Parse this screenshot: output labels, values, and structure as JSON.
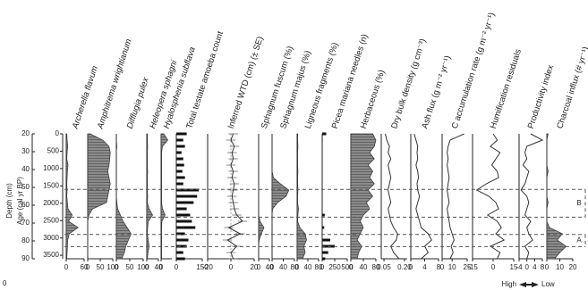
{
  "chart_data": {
    "type": "stratigraphic",
    "corner_label": "0",
    "depth_axis": {
      "label": "Depth (cm)",
      "lim": [
        20,
        90
      ],
      "ticks": [
        20,
        30,
        40,
        50,
        60,
        70,
        80,
        90
      ]
    },
    "age_axis": {
      "label": "Age (cal yr BP)",
      "lim": [
        0,
        3600
      ],
      "ticks": [
        0,
        500,
        1000,
        1500,
        2000,
        2500,
        3000,
        3500
      ]
    },
    "fill_color": "#8c8c8c",
    "line_color": "#333333",
    "ages": [
      0,
      180,
      360,
      540,
      720,
      900,
      1080,
      1260,
      1440,
      1620,
      1800,
      1980,
      2160,
      2340,
      2520,
      2700,
      2880,
      3060,
      3240,
      3420,
      3600
    ],
    "panels": [
      {
        "type": "area",
        "title": "Archerella flavum",
        "italic": true,
        "xlim": [
          0,
          60
        ],
        "xticks": [
          0,
          60
        ],
        "values": [
          2,
          3,
          5,
          3,
          2,
          6,
          4,
          3,
          2,
          3,
          2,
          4,
          6,
          20,
          8,
          40,
          10,
          5,
          4,
          3,
          2
        ]
      },
      {
        "type": "area",
        "title": "Amphitrema wrightianum",
        "italic": true,
        "xlim": [
          0,
          100
        ],
        "xticks": [
          0,
          50,
          100
        ],
        "values": [
          10,
          60,
          85,
          90,
          88,
          85,
          80,
          85,
          90,
          85,
          80,
          75,
          20,
          5,
          0,
          0,
          0,
          0,
          0,
          0,
          0
        ]
      },
      {
        "type": "area",
        "title": "Difflugia pulex",
        "italic": true,
        "xlim": [
          0,
          100
        ],
        "xticks": [
          0,
          50,
          100
        ],
        "values": [
          0,
          0,
          2,
          0,
          0,
          0,
          0,
          0,
          0,
          0,
          0,
          2,
          5,
          15,
          25,
          40,
          55,
          45,
          35,
          30,
          20
        ]
      },
      {
        "type": "area",
        "title": "Heleopera sphagni",
        "italic": true,
        "xlim": [
          0,
          40
        ],
        "xticks": [
          0,
          40
        ],
        "values": [
          2,
          2,
          3,
          2,
          2,
          2,
          3,
          2,
          2,
          2,
          3,
          2,
          8,
          20,
          5,
          3,
          2,
          5,
          8,
          4,
          2
        ]
      },
      {
        "type": "area",
        "title": "Hyalosphenia subflava",
        "italic": true,
        "xlim": [
          0,
          40
        ],
        "xticks": [
          0
        ],
        "values": [
          10,
          25,
          5,
          2,
          2,
          2,
          2,
          2,
          2,
          2,
          2,
          2,
          5,
          15,
          3,
          2,
          2,
          2,
          2,
          2,
          2
        ]
      },
      {
        "type": "bar",
        "title": "Total testate amoeba count",
        "italic": false,
        "xlim": [
          0,
          150
        ],
        "xticks": [
          0,
          150
        ],
        "values": [
          60,
          40,
          50,
          30,
          40,
          45,
          35,
          50,
          40,
          130,
          120,
          100,
          60,
          80,
          90,
          110,
          50,
          70,
          60,
          40,
          50
        ]
      },
      {
        "type": "errorline",
        "title": "Inferred WTD (cm) (± SE)",
        "italic": false,
        "xlim": [
          -20,
          20
        ],
        "xticks": [
          -20,
          0,
          20
        ],
        "values": [
          2,
          0,
          3,
          1,
          2,
          0,
          2,
          1,
          3,
          2,
          1,
          2,
          3,
          5,
          10,
          -2,
          8,
          -3,
          5,
          0,
          2
        ],
        "errors": [
          4,
          4,
          4,
          4,
          4,
          4,
          4,
          4,
          4,
          4,
          4,
          4,
          4,
          4,
          4,
          4,
          4,
          4,
          4,
          4,
          4
        ]
      },
      {
        "type": "area",
        "title": "Sphagnum fuscum (%)",
        "italic": false,
        "xlim": [
          0,
          40
        ],
        "xticks": [
          0,
          40
        ],
        "values": [
          0,
          0,
          0,
          0,
          0,
          0,
          0,
          0,
          0,
          0,
          0,
          0,
          0,
          0,
          5,
          20,
          10,
          2,
          0,
          0,
          0
        ]
      },
      {
        "type": "area",
        "title": "Sphagnum majus (%)",
        "italic": false,
        "xlim": [
          0,
          80
        ],
        "xticks": [
          0,
          40,
          80
        ],
        "values": [
          0,
          0,
          0,
          0,
          0,
          0,
          0,
          5,
          30,
          60,
          50,
          20,
          2,
          0,
          0,
          0,
          0,
          0,
          0,
          0,
          0
        ]
      },
      {
        "type": "area",
        "title": "Ligneous fragments (%)",
        "italic": false,
        "xlim": [
          0,
          80
        ],
        "xticks": [
          0,
          40,
          80
        ],
        "values": [
          2,
          2,
          3,
          2,
          2,
          2,
          3,
          2,
          2,
          3,
          2,
          2,
          5,
          3,
          2,
          10,
          30,
          35,
          25,
          30,
          20
        ]
      },
      {
        "type": "bar",
        "title": "Picea mariana needles (n)",
        "italic": false,
        "xlim": [
          0,
          500
        ],
        "xticks": [
          0,
          250,
          500
        ],
        "values": [
          80,
          10,
          0,
          0,
          0,
          0,
          0,
          0,
          0,
          0,
          0,
          0,
          0,
          50,
          0,
          40,
          0,
          160,
          250,
          120,
          60
        ]
      },
      {
        "type": "area",
        "title": "Herbaceous (%)",
        "italic": false,
        "xlim": [
          0,
          80
        ],
        "xticks": [
          0,
          40,
          80
        ],
        "values": [
          70,
          80,
          75,
          60,
          75,
          55,
          70,
          60,
          75,
          55,
          70,
          50,
          60,
          40,
          30,
          40,
          30,
          20,
          35,
          25,
          20
        ]
      },
      {
        "type": "line",
        "title": "Dry bulk density (g cm⁻³)",
        "italic": false,
        "xlim": [
          0.03,
          0.22
        ],
        "xticks": [
          0.05,
          {
            "value": 0.2,
            "label": "0.20"
          }
        ],
        "values": [
          0.06,
          0.07,
          0.09,
          0.08,
          0.1,
          0.08,
          0.09,
          0.1,
          0.09,
          0.08,
          0.09,
          0.1,
          0.08,
          0.09,
          0.1,
          0.12,
          0.15,
          0.14,
          0.1,
          0.12,
          0.16
        ]
      },
      {
        "type": "line",
        "title": "Ash flux (g m⁻² yr⁻¹)",
        "italic": false,
        "xlim": [
          0,
          8
        ],
        "xticks": [
          0,
          4,
          8
        ],
        "values": [
          1,
          1.5,
          2,
          1.8,
          2,
          1.5,
          2,
          2.2,
          1.8,
          2,
          2.5,
          2,
          1.5,
          2,
          2.5,
          3,
          5,
          6,
          4,
          5,
          3
        ]
      },
      {
        "type": "line",
        "title": "C accumulation rate (g m⁻² yr⁻¹)",
        "italic": false,
        "xlim": [
          0,
          25
        ],
        "xticks": [
          0,
          10,
          25
        ],
        "values": [
          22,
          8,
          6,
          5,
          6,
          5,
          6,
          7,
          6,
          5,
          6,
          7,
          5,
          6,
          7,
          8,
          10,
          12,
          9,
          11,
          8
        ]
      },
      {
        "type": "line",
        "title": "Humification residuals",
        "italic": false,
        "xlim": [
          -15,
          15
        ],
        "xticks": [
          -15,
          0,
          15
        ],
        "values": [
          0,
          3,
          -2,
          5,
          2,
          -1,
          3,
          4,
          -5,
          -12,
          -3,
          2,
          4,
          -4,
          3,
          6,
          2,
          8,
          -2,
          5,
          3
        ]
      },
      {
        "type": "line",
        "title": "Productivity index",
        "italic": false,
        "xlim": [
          -4,
          8
        ],
        "xticks": [
          -4,
          0,
          4,
          8
        ],
        "values": [
          2,
          8,
          0,
          -1,
          0,
          -2,
          1,
          0,
          -1,
          -3,
          0,
          1,
          0,
          -1,
          2,
          0,
          1,
          3,
          -1,
          1,
          0
        ]
      },
      {
        "type": "area",
        "title": "Charcoal influx (# yr⁻¹)",
        "italic": false,
        "xlim": [
          0,
          20
        ],
        "xticks": [
          0,
          10,
          20
        ],
        "values": [
          1,
          0,
          0,
          0,
          0,
          0,
          1,
          0,
          0,
          0,
          0,
          1,
          0,
          0,
          0,
          2,
          12,
          8,
          15,
          10,
          6
        ]
      }
    ],
    "zones": [
      {
        "label": "B",
        "top": 1600,
        "bottom": 2400
      },
      {
        "label": "A",
        "top": 2900,
        "bottom": 3250
      }
    ],
    "annotation": {
      "left": "High",
      "right": "Low"
    }
  }
}
